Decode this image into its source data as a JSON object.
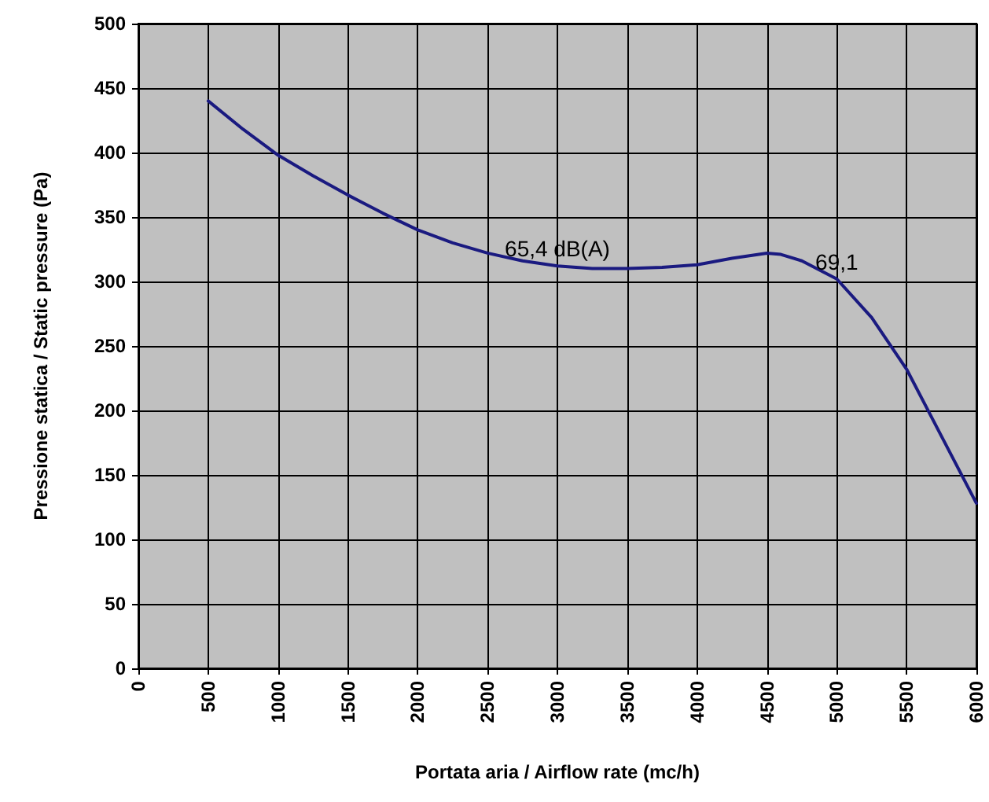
{
  "chart_data": {
    "type": "line",
    "xlabel": "Portata aria / Airflow rate (mc/h)",
    "ylabel": "Pressione statica / Static pressure (Pa)",
    "xlim": [
      0,
      6000
    ],
    "xticks": [
      0,
      500,
      1000,
      1500,
      2000,
      2500,
      3000,
      3500,
      4000,
      4500,
      5000,
      5500,
      6000
    ],
    "ylim": [
      0,
      500
    ],
    "yticks": [
      0,
      50,
      100,
      150,
      200,
      250,
      300,
      350,
      400,
      450,
      500
    ],
    "grid": true,
    "marker": "none",
    "line_style": "solid",
    "series": [
      {
        "color": "#1a1a80",
        "x": [
          500,
          750,
          1000,
          1250,
          1500,
          1750,
          2000,
          2250,
          2500,
          2750,
          3000,
          3250,
          3500,
          3750,
          4000,
          4250,
          4500,
          4600,
          4750,
          5000,
          5250,
          5500,
          5750,
          6000
        ],
        "values": [
          440,
          418,
          398,
          382,
          367,
          353,
          340,
          330,
          322,
          316,
          312,
          310,
          310,
          311,
          313,
          318,
          322,
          321,
          316,
          302,
          272,
          232,
          180,
          128
        ]
      }
    ],
    "annotations": [
      {
        "text": "65,4 dB(A)",
        "x": 3000,
        "y": 312
      },
      {
        "text": "69,1",
        "x": 5000,
        "y": 302
      }
    ]
  }
}
